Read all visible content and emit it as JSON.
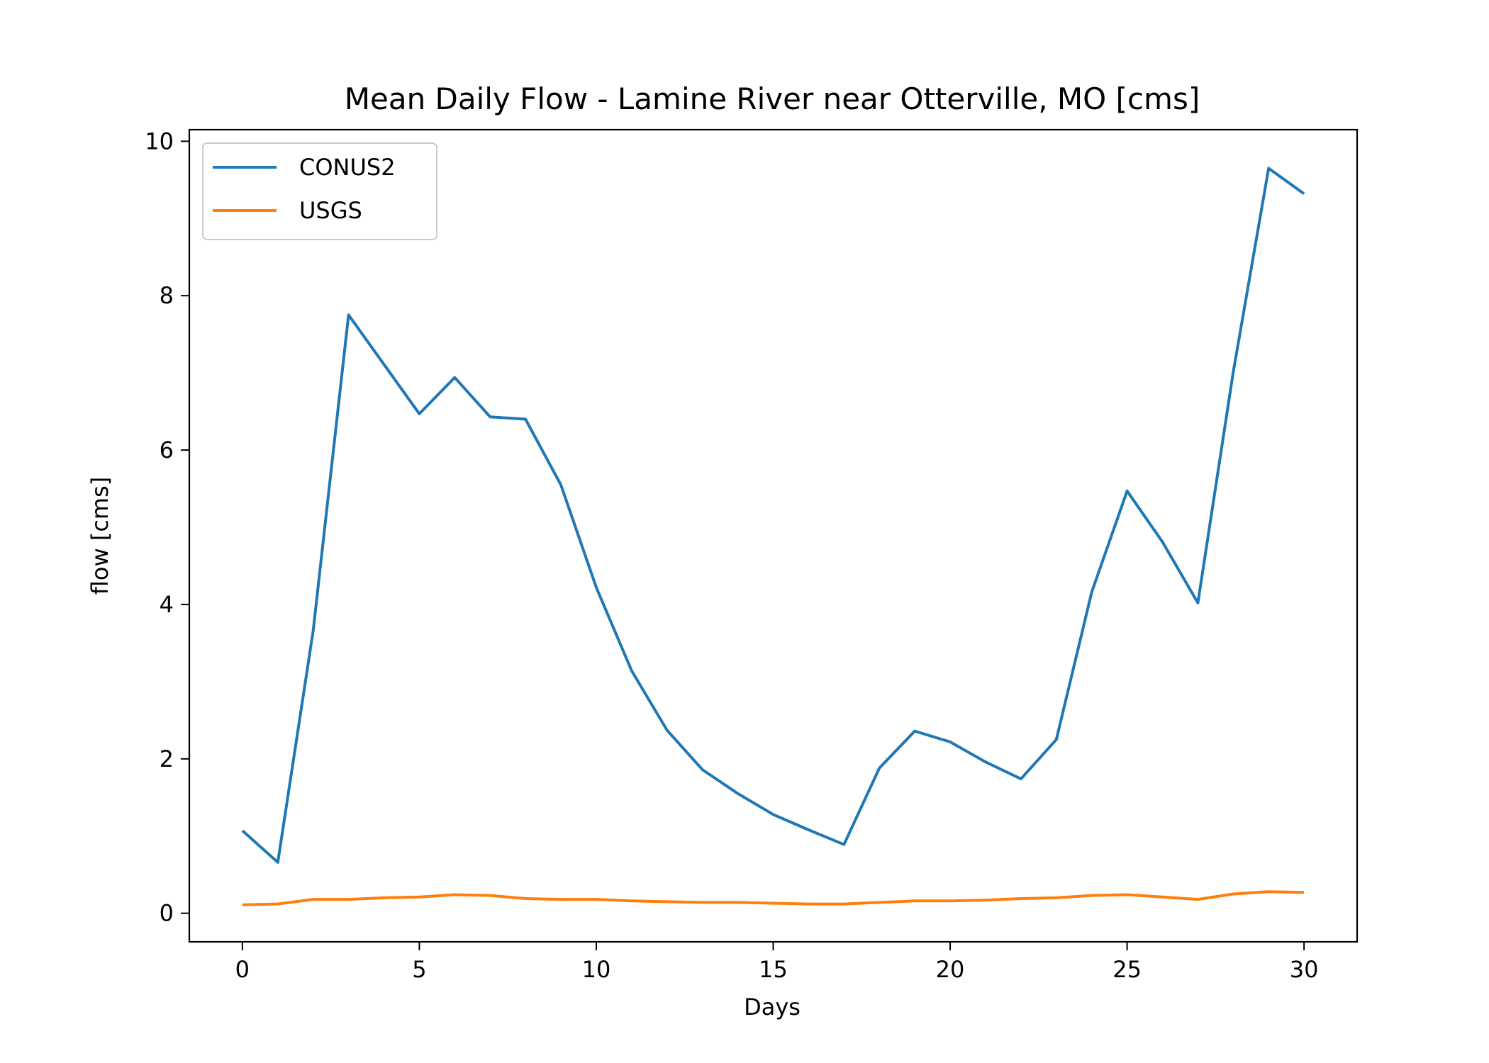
{
  "chart_data": {
    "type": "line",
    "title": "Mean Daily Flow - Lamine River near Otterville, MO [cms]",
    "xlabel": "Days",
    "ylabel": "flow [cms]",
    "xlim": [
      -1.5,
      31.5
    ],
    "ylim": [
      -0.37,
      10.15
    ],
    "xticks": [
      0,
      5,
      10,
      15,
      20,
      25,
      30
    ],
    "yticks": [
      0,
      2,
      4,
      6,
      8,
      10
    ],
    "xtick_labels": [
      "0",
      "5",
      "10",
      "15",
      "20",
      "25",
      "30"
    ],
    "ytick_labels": [
      "0",
      "2",
      "4",
      "6",
      "8",
      "10"
    ],
    "grid": false,
    "legend_position": "upper-left",
    "x": [
      0,
      1,
      2,
      3,
      4,
      5,
      6,
      7,
      8,
      9,
      10,
      11,
      12,
      13,
      14,
      15,
      16,
      17,
      18,
      19,
      20,
      21,
      22,
      23,
      24,
      25,
      26,
      27,
      28,
      29,
      30
    ],
    "series": [
      {
        "name": "CONUS2",
        "color": "#1f77b4",
        "values": [
          1.07,
          0.66,
          3.66,
          7.75,
          7.11,
          6.47,
          6.94,
          6.43,
          6.4,
          5.55,
          4.22,
          3.14,
          2.37,
          1.86,
          1.55,
          1.28,
          1.08,
          0.89,
          1.88,
          2.36,
          2.22,
          1.96,
          1.74,
          2.25,
          4.16,
          5.47,
          4.81,
          4.02,
          7.01,
          9.65,
          9.32
        ]
      },
      {
        "name": "USGS",
        "color": "#ff7f0e",
        "values": [
          0.11,
          0.12,
          0.18,
          0.18,
          0.2,
          0.21,
          0.24,
          0.23,
          0.19,
          0.18,
          0.18,
          0.16,
          0.15,
          0.14,
          0.14,
          0.13,
          0.12,
          0.12,
          0.14,
          0.16,
          0.16,
          0.17,
          0.19,
          0.2,
          0.23,
          0.24,
          0.21,
          0.18,
          0.25,
          0.28,
          0.27
        ]
      }
    ]
  }
}
